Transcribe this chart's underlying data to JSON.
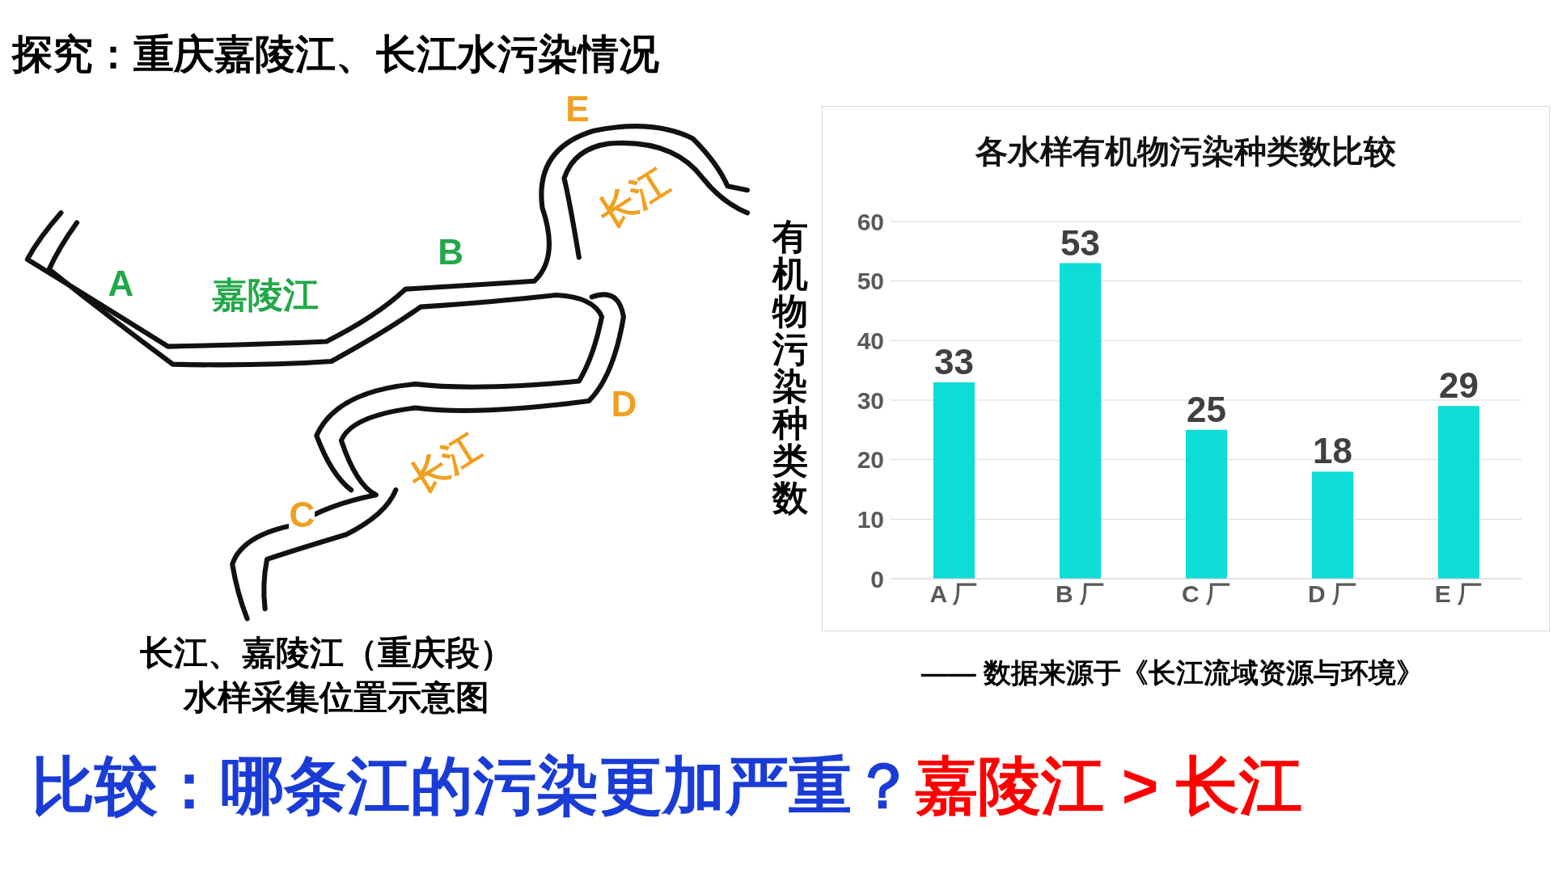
{
  "chart_data": {
    "type": "bar",
    "title": "各水样有机物污染种类数比较",
    "ylabel": "有机物污染种类数",
    "categories": [
      "A 厂",
      "B 厂",
      "C 厂",
      "D 厂",
      "E 厂"
    ],
    "values": [
      33,
      53,
      25,
      18,
      29
    ],
    "color": "#0edcd6",
    "ylim": [
      0,
      60
    ],
    "yticks": [
      0,
      10,
      20,
      30,
      40,
      50,
      60
    ],
    "grid": "y",
    "data_labels": true,
    "annotations": [
      "探究：重庆嘉陵江、长江水污染情况",
      "A",
      "B",
      "C",
      "D",
      "E",
      "嘉陵江",
      "长江",
      "长江",
      "长江、嘉陵江（重庆段）",
      "水样采集位置示意图",
      "—— 数据来源于《长江流域资源与环境》",
      "比较：哪条江的污染更加严重？",
      "嘉陵江 > 长江"
    ]
  }
}
